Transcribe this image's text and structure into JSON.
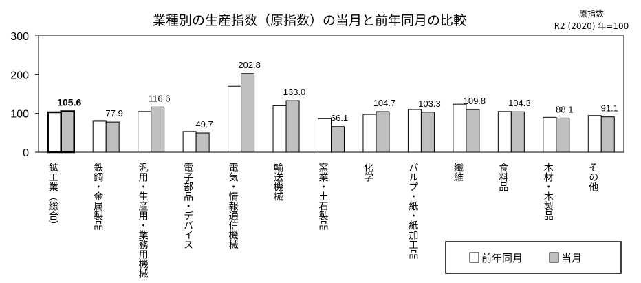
{
  "chart_data": {
    "type": "bar",
    "title": "業種別の生産指数（原指数）の当月と前年同月の比較",
    "note_line1": "原指数",
    "note_line2": "R2 (2020) 年=100",
    "ylim": [
      0,
      300
    ],
    "yticks": [
      "0",
      "100",
      "200",
      "300"
    ],
    "grid": false,
    "legend_position": "bottom-right",
    "categories": [
      "鉱工業（総合）",
      "鉄鋼・金属製品",
      "汎用・生産用・業務用機械",
      "電子部品・デバイス",
      "電気・情報通信機械",
      "輸送機械",
      "窯業・土石製品",
      "化学",
      "パルプ・紙・紙加工品",
      "繊維",
      "食料品",
      "木材・木製品",
      "その他"
    ],
    "series": [
      {
        "name": "前年同月",
        "color": "#ffffff",
        "values": [
          103.0,
          80.0,
          105.0,
          53.5,
          170.0,
          120.0,
          86.5,
          97.5,
          110.0,
          124.0,
          105.0,
          90.0,
          94.5
        ]
      },
      {
        "name": "当月",
        "color": "#bfbfbf",
        "values": [
          105.6,
          77.9,
          116.6,
          49.7,
          202.8,
          133.0,
          66.1,
          104.7,
          103.3,
          109.8,
          104.3,
          88.1,
          91.1
        ],
        "labels": [
          "105.6",
          "77.9",
          "116.6",
          "49.7",
          "202.8",
          "133.0",
          "66.1",
          "104.7",
          "103.3",
          "109.8",
          "104.3",
          "88.1",
          "91.1"
        ]
      }
    ]
  }
}
